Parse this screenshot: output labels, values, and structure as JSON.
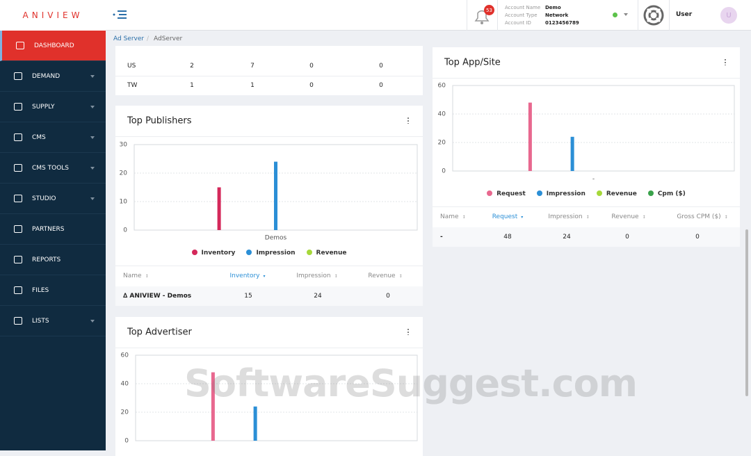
{
  "brand": "ANIVIEW",
  "header": {
    "notifications": "53",
    "account": {
      "name_label": "Account Name",
      "name": "Demo",
      "type_label": "Account Type",
      "type": "Network",
      "id_label": "Account ID",
      "id": "0123456789"
    },
    "user": {
      "name": "User",
      "initial": "U"
    }
  },
  "sidebar": [
    {
      "label": "DASHBOARD",
      "active": true,
      "submenu": false
    },
    {
      "label": "DEMAND",
      "active": false,
      "submenu": true
    },
    {
      "label": "SUPPLY",
      "active": false,
      "submenu": true
    },
    {
      "label": "CMS",
      "active": false,
      "submenu": true
    },
    {
      "label": "CMS TOOLS",
      "active": false,
      "submenu": true
    },
    {
      "label": "STUDIO",
      "active": false,
      "submenu": true
    },
    {
      "label": "PARTNERS",
      "active": false,
      "submenu": false
    },
    {
      "label": "REPORTS",
      "active": false,
      "submenu": false
    },
    {
      "label": "FILES",
      "active": false,
      "submenu": false
    },
    {
      "label": "LISTS",
      "active": false,
      "submenu": true
    }
  ],
  "breadcrumb": [
    "Ad Server",
    "AdServer"
  ],
  "country_table": {
    "rows": [
      [
        "US",
        "2",
        "7",
        "0",
        "0"
      ],
      [
        "TW",
        "1",
        "1",
        "0",
        "0"
      ]
    ]
  },
  "top_publishers": {
    "title": "Top Publishers",
    "chart": {
      "type": "bar",
      "categories": [
        "Demos"
      ],
      "series": [
        {
          "name": "Inventory",
          "color": "#d4285a",
          "values": [
            15
          ]
        },
        {
          "name": "Impression",
          "color": "#2b8fd6",
          "values": [
            24
          ]
        },
        {
          "name": "Revenue",
          "color": "#a6d83a",
          "values": [
            0
          ]
        }
      ],
      "ylim": [
        0,
        30
      ],
      "yticks": [
        0,
        10,
        20,
        30
      ],
      "grid": true
    },
    "table": {
      "headers": [
        "Name",
        "Inventory",
        "Impression",
        "Revenue"
      ],
      "sorted": 1,
      "rows": [
        [
          "∆ ANIVIEW - Demos",
          "15",
          "24",
          "0"
        ]
      ]
    }
  },
  "top_app_site": {
    "title": "Top App/Site",
    "chart": {
      "type": "bar",
      "categories": [
        "-"
      ],
      "series": [
        {
          "name": "Request",
          "color": "#e8688f",
          "values": [
            48
          ]
        },
        {
          "name": "Impression",
          "color": "#2b8fd6",
          "values": [
            24
          ]
        },
        {
          "name": "Revenue",
          "color": "#a6d83a",
          "values": [
            0
          ]
        },
        {
          "name": "Cpm ($)",
          "color": "#3aa24b",
          "values": [
            0
          ]
        }
      ],
      "ylim": [
        0,
        60
      ],
      "yticks": [
        0,
        20,
        40,
        60
      ],
      "grid": true
    },
    "table": {
      "headers": [
        "Name",
        "Request",
        "Impression",
        "Revenue",
        "Gross CPM ($)"
      ],
      "sorted": 1,
      "rows": [
        [
          "-",
          "48",
          "24",
          "0",
          "0"
        ]
      ]
    }
  },
  "top_advertiser": {
    "title": "Top Advertiser",
    "chart": {
      "type": "bar",
      "series": [
        {
          "color": "#e8688f",
          "values": [
            48
          ]
        },
        {
          "color": "#2b8fd6",
          "values": [
            24
          ]
        },
        {
          "color": "#a6d83a",
          "values": [
            0
          ]
        },
        {
          "color": "#3aa24b",
          "values": [
            0
          ]
        }
      ],
      "ylim": [
        0,
        60
      ],
      "yticks": [
        0,
        20,
        40,
        60
      ],
      "grid": true
    }
  },
  "watermark": "SoftwareSuggest.com"
}
